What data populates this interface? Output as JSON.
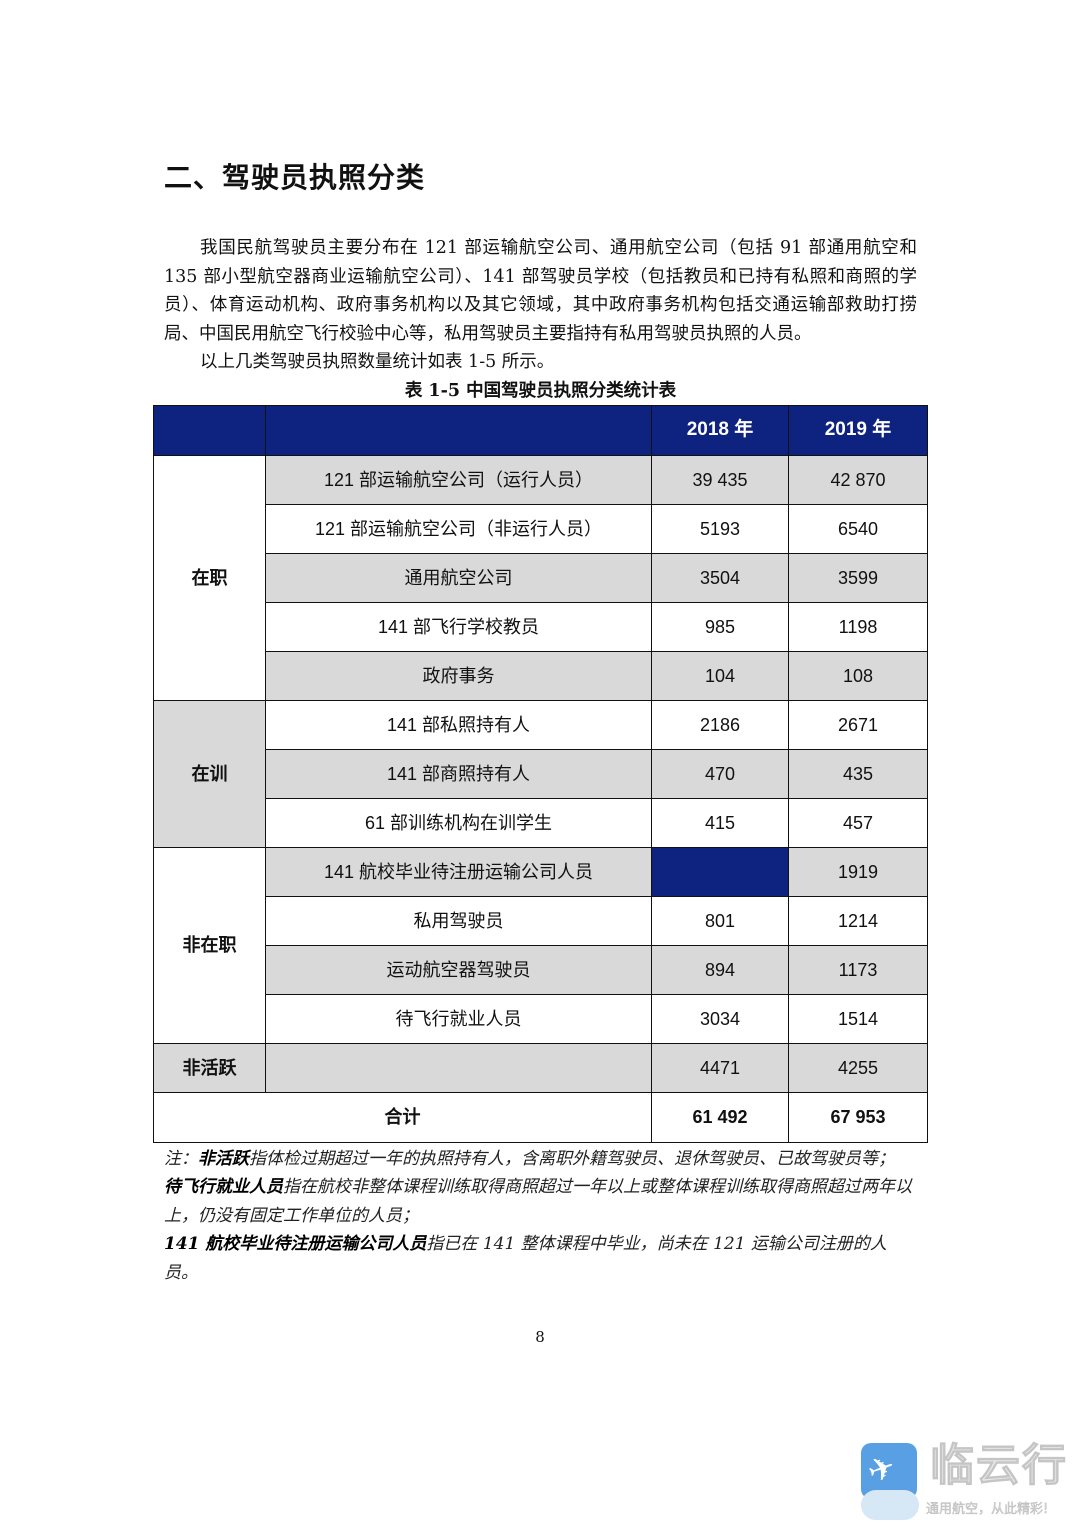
{
  "heading": "二、驾驶员执照分类",
  "paragraphs": [
    "我国民航驾驶员主要分布在 121 部运输航空公司、通用航空公司（包括 91 部通用航空和 135 部小型航空器商业运输航空公司）、141 部驾驶员学校（包括教员和已持有私照和商照的学员）、体育运动机构、政府事务机构以及其它领域，其中政府事务机构包括交通运输部救助打捞局、中国民用航空飞行校验中心等，私用驾驶员主要指持有私用驾驶员执照的人员。",
    "以上几类驾驶员执照数量统计如表 1-5 所示。"
  ],
  "table": {
    "caption": "表 1-5  中国驾驶员执照分类统计表",
    "header": [
      "",
      "",
      "2018 年",
      "2019 年"
    ],
    "groups": [
      {
        "category": "在职",
        "shaded": false,
        "rows": [
          {
            "label": "121 部运输航空公司（运行人员）",
            "y2018": "39 435",
            "y2019": "42 870"
          },
          {
            "label": "121 部运输航空公司（非运行人员）",
            "y2018": "5193",
            "y2019": "6540"
          },
          {
            "label": "通用航空公司",
            "y2018": "3504",
            "y2019": "3599"
          },
          {
            "label": "141 部飞行学校教员",
            "y2018": "985",
            "y2019": "1198"
          },
          {
            "label": "政府事务",
            "y2018": "104",
            "y2019": "108"
          }
        ]
      },
      {
        "category": "在训",
        "shaded": true,
        "rows": [
          {
            "label": "141 部私照持有人",
            "y2018": "2186",
            "y2019": "2671"
          },
          {
            "label": "141 部商照持有人",
            "y2018": "470",
            "y2019": "435"
          },
          {
            "label": "61 部训练机构在训学生",
            "y2018": "415",
            "y2019": "457"
          }
        ]
      },
      {
        "category": "非在职",
        "shaded": false,
        "rows": [
          {
            "label": "141 航校毕业待注册运输公司人员",
            "y2018": "",
            "y2019": "1919"
          },
          {
            "label": "私用驾驶员",
            "y2018": "801",
            "y2019": "1214"
          },
          {
            "label": "运动航空器驾驶员",
            "y2018": "894",
            "y2019": "1173"
          },
          {
            "label": "待飞行就业人员",
            "y2018": "3034",
            "y2019": "1514"
          }
        ]
      },
      {
        "category": "非活跃",
        "shaded": true,
        "rows": [
          {
            "label": "",
            "y2018": "4471",
            "y2019": "4255"
          }
        ]
      }
    ],
    "total": {
      "label": "合计",
      "y2018": "61 492",
      "y2019": "67 953"
    },
    "colors": {
      "header": "#0e2280",
      "shade": "#d9d9d9"
    }
  },
  "notes": [
    {
      "prefix": "注：",
      "term": "非活跃",
      "text": "指体检过期超过一年的执照持有人，含离职外籍驾驶员、退休驾驶员、已故驾驶员等；"
    },
    {
      "prefix": "",
      "term": "待飞行就业人员",
      "text": "指在航校非整体课程训练取得商照超过一年以上或整体课程训练取得商照超过两年以上，仍没有固定工作单位的人员；"
    },
    {
      "prefix": "",
      "term": "141 航校毕业待注册运输公司人员",
      "text": "指已在 141 整体课程中毕业，尚未在 121 运输公司注册的人员。"
    }
  ],
  "page_number": "8",
  "watermark": {
    "name": "临云行",
    "slogan": "通用航空，从此精彩!",
    "icon": "airplane-icon"
  }
}
